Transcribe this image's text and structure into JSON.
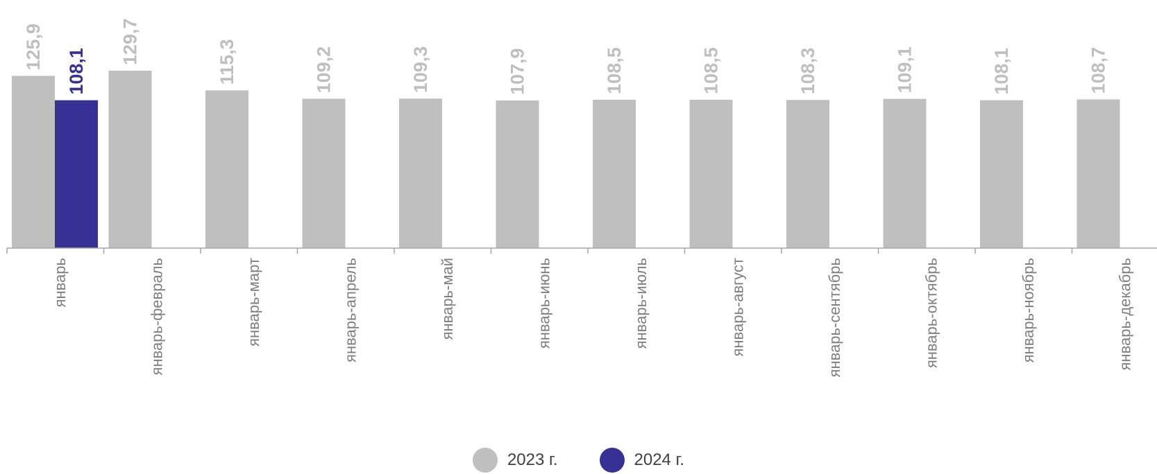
{
  "chart_data": {
    "type": "bar",
    "categories": [
      "январь",
      "январь-февраль",
      "январь-март",
      "январь-апрель",
      "январь-май",
      "январь-июнь",
      "январь-июль",
      "январь-август",
      "январь-сентябрь",
      "январь-октябрь",
      "январь-ноябрь",
      "январь-декабрь"
    ],
    "series": [
      {
        "name": "2023 г.",
        "color": "#bfbfbf",
        "label_color": "#bfbfbf",
        "values": [
          125.9,
          129.7,
          115.3,
          109.2,
          109.3,
          107.9,
          108.5,
          108.5,
          108.3,
          109.1,
          108.1,
          108.7
        ],
        "labels": [
          "125,9",
          "129,7",
          "115,3",
          "109,2",
          "109,3",
          "107,9",
          "108,5",
          "108,5",
          "108,3",
          "109,1",
          "108,1",
          "108,7"
        ]
      },
      {
        "name": "2024 г.",
        "color": "#373195",
        "label_color": "#373195",
        "values": [
          108.1,
          null,
          null,
          null,
          null,
          null,
          null,
          null,
          null,
          null,
          null,
          null
        ],
        "labels": [
          "108,1",
          "",
          "",
          "",
          "",
          "",
          "",
          "",
          "",
          "",
          "",
          ""
        ]
      }
    ],
    "title": "",
    "xlabel": "",
    "ylabel": "",
    "ylim": [
      0,
      140
    ],
    "grid": false,
    "legend_position": "bottom-center",
    "data_labels": "rotated-vertical"
  },
  "legend": {
    "items": [
      {
        "label": "2023 г.",
        "color": "#bfbfbf"
      },
      {
        "label": "2024 г.",
        "color": "#373195"
      }
    ]
  }
}
